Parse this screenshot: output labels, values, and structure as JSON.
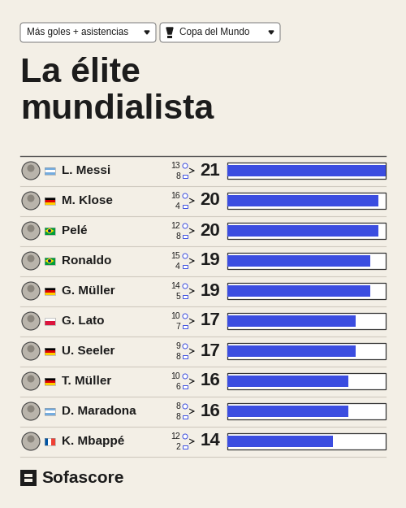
{
  "header": {
    "filters": [
      "Más goles + asistencias",
      "Copa del Mundo"
    ],
    "brand": "Sofascore"
  },
  "chart_data": {
    "type": "bar",
    "orientation": "horizontal",
    "title": "La élite\nmundialista",
    "categories": [
      "L. Messi",
      "M. Klose",
      "Pelé",
      "Ronaldo",
      "G. Müller",
      "G. Lato",
      "U. Seeler",
      "T. Müller",
      "D. Maradona",
      "K. Mbappé"
    ],
    "goals": [
      13,
      16,
      12,
      15,
      14,
      10,
      9,
      10,
      8,
      12
    ],
    "assists": [
      8,
      4,
      8,
      4,
      5,
      7,
      8,
      6,
      8,
      2
    ],
    "values": [
      21,
      20,
      20,
      19,
      19,
      17,
      17,
      16,
      16,
      14
    ],
    "data_labels": true,
    "color": "#3b4de0",
    "xlim": [
      0,
      21
    ],
    "tick_labels": false
  }
}
